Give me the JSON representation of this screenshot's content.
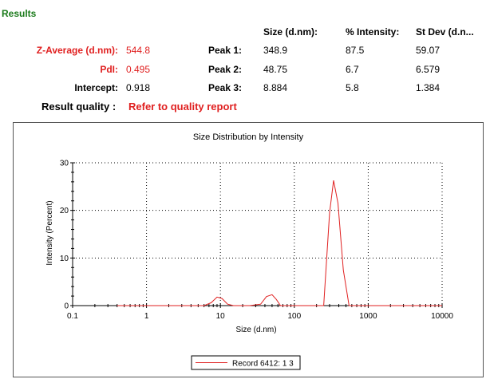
{
  "results": {
    "heading": "Results",
    "columns": {
      "size": "Size (d.nm):",
      "intensity": "% Intensity:",
      "stdev": "St Dev (d.n..."
    },
    "z_average": {
      "label": "Z-Average (d.nm):",
      "value": "544.8"
    },
    "pdi": {
      "label": "PdI:",
      "value": "0.495"
    },
    "intercept": {
      "label": "Intercept:",
      "value": "0.918"
    },
    "peaks": [
      {
        "label": "Peak 1:",
        "size": "348.9",
        "intensity": "87.5",
        "stdev": "59.07"
      },
      {
        "label": "Peak 2:",
        "size": "48.75",
        "intensity": "6.7",
        "stdev": "6.579"
      },
      {
        "label": "Peak 3:",
        "size": "8.884",
        "intensity": "5.8",
        "stdev": "1.384"
      }
    ],
    "quality_label": "Result quality :",
    "quality_value": "Refer to quality report"
  },
  "colors": {
    "series": "#e02020",
    "heading": "#1a7a1a",
    "highlight": "#e02020"
  },
  "chart_data": {
    "type": "line",
    "title": "Size Distribution by Intensity",
    "xlabel": "Size (d.nm)",
    "ylabel": "Intensity (Percent)",
    "x_scale": "log",
    "xlim": [
      0.1,
      10000
    ],
    "ylim": [
      0,
      30
    ],
    "x_ticks": [
      {
        "value": 0.1,
        "label": "0.1"
      },
      {
        "value": 1,
        "label": "1"
      },
      {
        "value": 10,
        "label": "10"
      },
      {
        "value": 100,
        "label": "100"
      },
      {
        "value": 1000,
        "label": "1000"
      },
      {
        "value": 10000,
        "label": "10000"
      }
    ],
    "y_ticks": [
      {
        "value": 0,
        "label": "0"
      },
      {
        "value": 10,
        "label": "10"
      },
      {
        "value": 20,
        "label": "20"
      },
      {
        "value": 30,
        "label": "30"
      }
    ],
    "grid": "dotted",
    "legend_position": "bottom-center",
    "series": [
      {
        "name": "Record 6412: 1 3",
        "x": [
          0.4,
          1,
          3,
          6,
          7.5,
          9,
          10.5,
          12.5,
          15,
          25,
          35,
          42,
          50,
          57,
          65,
          80,
          150,
          250,
          300,
          340,
          390,
          460,
          550,
          1000,
          10000
        ],
        "y": [
          0,
          0,
          0,
          0,
          0.6,
          1.8,
          1.5,
          0.3,
          0,
          0,
          0.3,
          1.9,
          2.3,
          1.3,
          0,
          0,
          0,
          0,
          19.5,
          26.3,
          21.5,
          7.5,
          0,
          0,
          0
        ]
      }
    ]
  }
}
